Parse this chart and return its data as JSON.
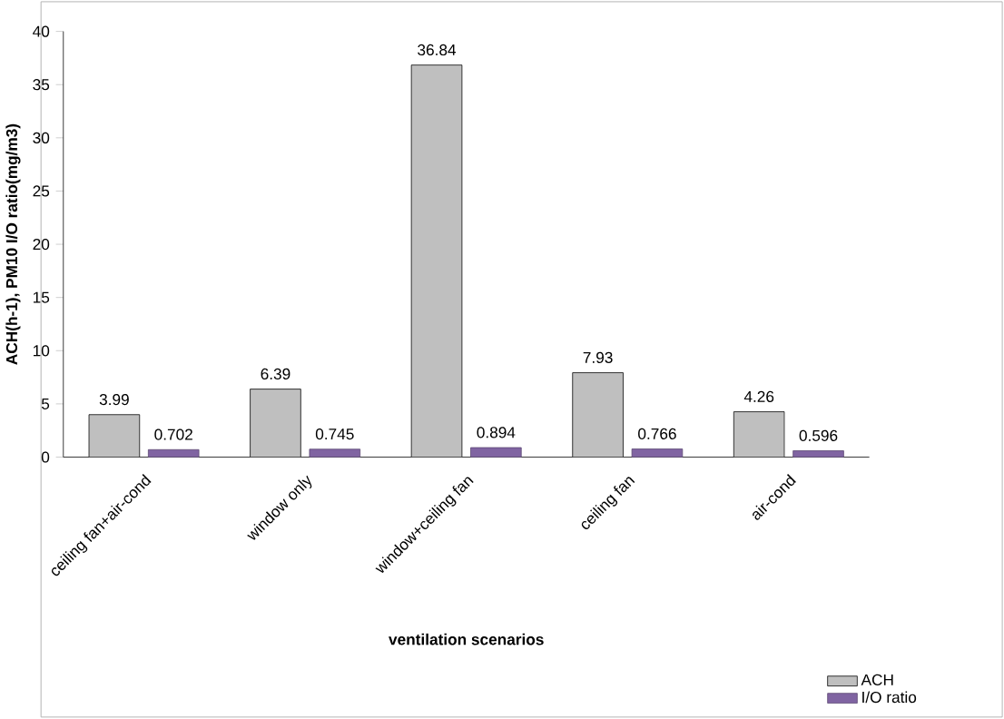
{
  "chart_data": {
    "type": "bar",
    "xlabel": "ventilation scenarios",
    "ylabel": "ACH(h-1), PM10 I/O ratio(mg/m3)",
    "categories": [
      "ceiling fan+air-cond",
      "window only",
      "window+ceiling fan",
      "ceiling fan",
      "air-cond"
    ],
    "series": [
      {
        "name": "ACH",
        "color": "#bfbfbf",
        "values": [
          3.99,
          6.39,
          36.84,
          7.93,
          4.26
        ]
      },
      {
        "name": "I/O ratio",
        "color": "#8064a2",
        "values": [
          0.702,
          0.745,
          0.894,
          0.766,
          0.596
        ]
      }
    ],
    "ylim": [
      0,
      40
    ],
    "yticks": [
      0,
      5,
      10,
      15,
      20,
      25,
      30,
      35,
      40
    ],
    "grid": false,
    "legend": "bottom right",
    "data_labels": true
  }
}
